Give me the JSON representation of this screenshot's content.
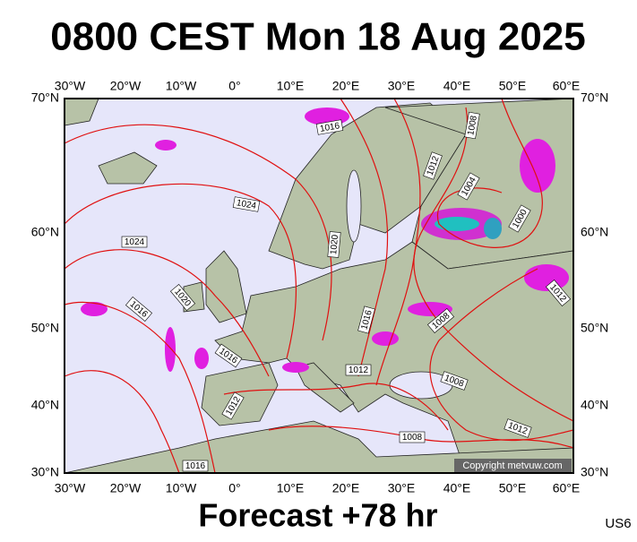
{
  "header": {
    "title": "0800 CEST Mon 18 Aug 2025"
  },
  "axes": {
    "top": [
      "30°W",
      "20°W",
      "10°W",
      "0°",
      "10°E",
      "20°E",
      "30°E",
      "40°E",
      "50°E",
      "60°E"
    ],
    "bottom": [
      "30°W",
      "20°W",
      "10°W",
      "0°",
      "10°E",
      "20°E",
      "30°E",
      "40°E",
      "50°E",
      "60°E"
    ],
    "left": [
      "70°N",
      "60°N",
      "50°N",
      "40°N",
      "30°N"
    ],
    "right": [
      "70°N",
      "60°N",
      "50°N",
      "40°N",
      "30°N"
    ]
  },
  "isobar_labels": [
    "1016",
    "1008",
    "1012",
    "1004",
    "1000",
    "1024",
    "1024",
    "1020",
    "1020",
    "1016",
    "1012",
    "1016",
    "1008",
    "1016",
    "1012",
    "1008",
    "1012",
    "1012",
    "1008",
    "1016"
  ],
  "copyright": "Copyright metvuw.com",
  "footer": {
    "forecast": "Forecast +78 hr",
    "code": "US6"
  }
}
